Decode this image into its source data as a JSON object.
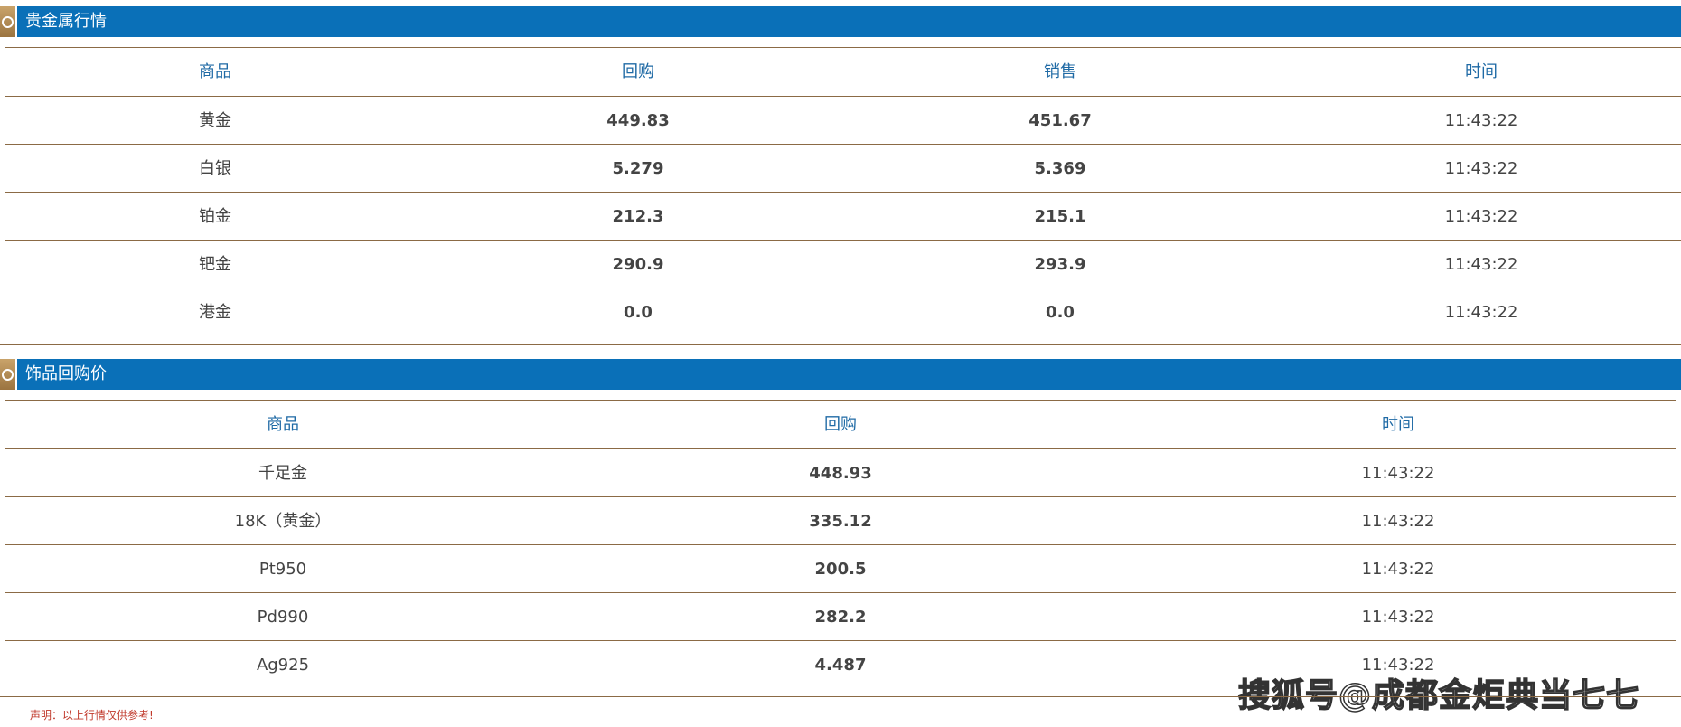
{
  "sections": [
    {
      "title": "贵金属行情",
      "columns": [
        "商品",
        "回购",
        "销售",
        "时间"
      ],
      "rows": [
        [
          "黄金",
          "449.83",
          "451.67",
          "11:43:22"
        ],
        [
          "白银",
          "5.279",
          "5.369",
          "11:43:22"
        ],
        [
          "铂金",
          "212.3",
          "215.1",
          "11:43:22"
        ],
        [
          "钯金",
          "290.9",
          "293.9",
          "11:43:22"
        ],
        [
          "港金",
          "0.0",
          "0.0",
          "11:43:22"
        ]
      ]
    },
    {
      "title": "饰品回购价",
      "columns": [
        "商品",
        "回购",
        "时间"
      ],
      "rows": [
        [
          "千足金",
          "448.93",
          "11:43:22"
        ],
        [
          "18K（黄金）",
          "335.12",
          "11:43:22"
        ],
        [
          "Pt950",
          "200.5",
          "11:43:22"
        ],
        [
          "Pd990",
          "282.2",
          "11:43:22"
        ],
        [
          "Ag925",
          "4.487",
          "11:43:22"
        ]
      ]
    }
  ],
  "disclaimer": "声明：以上行情仅供参考!",
  "watermark": "搜狐号@成都金炬典当七七"
}
